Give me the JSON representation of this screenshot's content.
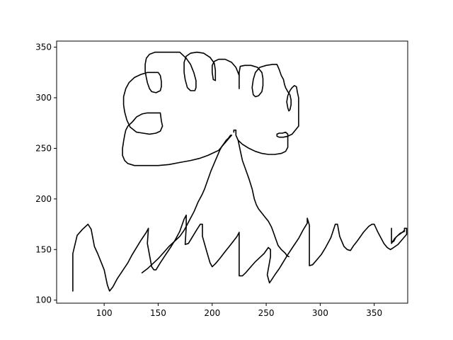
{
  "chart_data": {
    "type": "line",
    "title": "",
    "xlabel": "",
    "ylabel": "",
    "xlim": [
      56,
      381
    ],
    "ylim": [
      97,
      356
    ],
    "xticks": [
      100,
      150,
      200,
      250,
      300,
      350
    ],
    "yticks": [
      100,
      150,
      200,
      250,
      300,
      350
    ],
    "grid": false,
    "legend": "none",
    "line_color": "#000000",
    "series": [
      {
        "points": [
          [
            71,
            109
          ],
          [
            71,
            146
          ],
          [
            75,
            164
          ],
          [
            80,
            170
          ],
          [
            85,
            175
          ],
          [
            88,
            170
          ],
          [
            91,
            153
          ],
          [
            94,
            146
          ],
          [
            97,
            138
          ],
          [
            100,
            130
          ],
          [
            103,
            115
          ],
          [
            105,
            109
          ],
          [
            108,
            113
          ],
          [
            112,
            121
          ],
          [
            117,
            129
          ],
          [
            122,
            137
          ],
          [
            126,
            145
          ],
          [
            130,
            152
          ],
          [
            134,
            159
          ],
          [
            139,
            167
          ],
          [
            141,
            171
          ],
          [
            140,
            156
          ],
          [
            144,
            133
          ],
          [
            146,
            130
          ],
          [
            148,
            130
          ],
          [
            152,
            137
          ],
          [
            157,
            145
          ],
          [
            162,
            153
          ],
          [
            166,
            160
          ],
          [
            170,
            168
          ],
          [
            174,
            180
          ],
          [
            176,
            184
          ],
          [
            176,
            172
          ],
          [
            175,
            155
          ],
          [
            178,
            156
          ],
          [
            182,
            163
          ],
          [
            186,
            170
          ],
          [
            189,
            175
          ],
          [
            191,
            175
          ],
          [
            191,
            163
          ],
          [
            195,
            148
          ],
          [
            198,
            137
          ],
          [
            200,
            133
          ],
          [
            203,
            136
          ],
          [
            207,
            141
          ],
          [
            212,
            148
          ],
          [
            218,
            156
          ],
          [
            223,
            163
          ],
          [
            225,
            167
          ],
          [
            225,
            124
          ],
          [
            228,
            124
          ],
          [
            231,
            127
          ],
          [
            235,
            132
          ],
          [
            240,
            138
          ],
          [
            245,
            143
          ],
          [
            248,
            146
          ],
          [
            252,
            152
          ],
          [
            254,
            150
          ],
          [
            254,
            143
          ],
          [
            251,
            125
          ],
          [
            253,
            117
          ],
          [
            255,
            120
          ],
          [
            258,
            125
          ],
          [
            262,
            131
          ],
          [
            266,
            138
          ],
          [
            270,
            145
          ],
          [
            275,
            153
          ],
          [
            280,
            161
          ],
          [
            284,
            169
          ],
          [
            288,
            176
          ],
          [
            288,
            181
          ],
          [
            290,
            174
          ],
          [
            290,
            134
          ],
          [
            293,
            135
          ],
          [
            297,
            140
          ],
          [
            301,
            145
          ],
          [
            305,
            152
          ],
          [
            308,
            158
          ],
          [
            310,
            162
          ],
          [
            314,
            175
          ],
          [
            316,
            175
          ],
          [
            318,
            163
          ],
          [
            322,
            153
          ],
          [
            325,
            150
          ],
          [
            328,
            149
          ],
          [
            331,
            154
          ],
          [
            334,
            158
          ],
          [
            338,
            164
          ],
          [
            340,
            167
          ],
          [
            345,
            173
          ],
          [
            348,
            175
          ],
          [
            350,
            175
          ],
          [
            353,
            168
          ],
          [
            356,
            162
          ],
          [
            359,
            156
          ],
          [
            362,
            152
          ],
          [
            365,
            150
          ],
          [
            368,
            152
          ],
          [
            372,
            155
          ],
          [
            376,
            160
          ],
          [
            380,
            165
          ],
          [
            380,
            171
          ],
          [
            378,
            171
          ],
          [
            378,
            168
          ],
          [
            374,
            166
          ],
          [
            370,
            162
          ],
          [
            368,
            158
          ],
          [
            366,
            158
          ],
          [
            366,
            168
          ],
          [
            366,
            171
          ],
          [
            366,
            156
          ],
          [
            369,
            161
          ],
          [
            372,
            164
          ],
          [
            376,
            167
          ],
          [
            378,
            169
          ]
        ]
      },
      {
        "points": [
          [
            135,
            127
          ],
          [
            140,
            131
          ],
          [
            145,
            136
          ],
          [
            150,
            141
          ],
          [
            155,
            147
          ],
          [
            160,
            153
          ],
          [
            165,
            158
          ],
          [
            170,
            163
          ],
          [
            174,
            169
          ],
          [
            177,
            175
          ],
          [
            180,
            181
          ],
          [
            183,
            187
          ],
          [
            185,
            192
          ],
          [
            187,
            197
          ],
          [
            189,
            201
          ],
          [
            191,
            205
          ],
          [
            193,
            210
          ],
          [
            195,
            216
          ],
          [
            197,
            222
          ],
          [
            199,
            228
          ],
          [
            201,
            233
          ],
          [
            203,
            238
          ],
          [
            205,
            243
          ],
          [
            207,
            248
          ],
          [
            209,
            252
          ],
          [
            211,
            255
          ],
          [
            213,
            258
          ],
          [
            215,
            260
          ],
          [
            217,
            263
          ],
          [
            218,
            263
          ]
        ]
      },
      {
        "points": [
          [
            218,
            263
          ],
          [
            214,
            258
          ],
          [
            210,
            253
          ],
          [
            206,
            248
          ],
          [
            202,
            246
          ],
          [
            196,
            243
          ],
          [
            188,
            240
          ],
          [
            180,
            238
          ],
          [
            170,
            236
          ],
          [
            160,
            234
          ],
          [
            150,
            233
          ],
          [
            140,
            233
          ],
          [
            128,
            233
          ],
          [
            122,
            235
          ],
          [
            119,
            238
          ],
          [
            117,
            243
          ],
          [
            117,
            250
          ],
          [
            118,
            257
          ],
          [
            119,
            263
          ],
          [
            120,
            268
          ],
          [
            122,
            272
          ],
          [
            126,
            276
          ],
          [
            130,
            281
          ],
          [
            135,
            284
          ],
          [
            140,
            285
          ],
          [
            148,
            285
          ],
          [
            152,
            285
          ],
          [
            153,
            277
          ],
          [
            154,
            272
          ],
          [
            152,
            267
          ],
          [
            148,
            265
          ],
          [
            142,
            264
          ],
          [
            136,
            265
          ],
          [
            130,
            266
          ],
          [
            124,
            271
          ],
          [
            121,
            278
          ],
          [
            119,
            286
          ],
          [
            118,
            293
          ],
          [
            118,
            301
          ],
          [
            120,
            309
          ],
          [
            123,
            315
          ],
          [
            128,
            320
          ],
          [
            134,
            323
          ],
          [
            140,
            325
          ],
          [
            145,
            325
          ],
          [
            150,
            325
          ],
          [
            152,
            322
          ],
          [
            153,
            316
          ],
          [
            153,
            311
          ],
          [
            152,
            307
          ],
          [
            148,
            305
          ],
          [
            144,
            306
          ],
          [
            142,
            309
          ],
          [
            140,
            315
          ],
          [
            139,
            320
          ],
          [
            138,
            326
          ],
          [
            138,
            333
          ],
          [
            139,
            339
          ],
          [
            142,
            343
          ],
          [
            147,
            345
          ],
          [
            160,
            345
          ],
          [
            170,
            345
          ],
          [
            176,
            339
          ],
          [
            180,
            333
          ],
          [
            183,
            325
          ],
          [
            185,
            317
          ],
          [
            185,
            310
          ],
          [
            184,
            307
          ],
          [
            180,
            307
          ],
          [
            177,
            310
          ],
          [
            175,
            318
          ],
          [
            174,
            325
          ],
          [
            174,
            335
          ],
          [
            176,
            341
          ],
          [
            180,
            344
          ],
          [
            186,
            345
          ],
          [
            192,
            344
          ],
          [
            198,
            340
          ],
          [
            202,
            334
          ],
          [
            203,
            327
          ],
          [
            203,
            320
          ],
          [
            203,
            317
          ],
          [
            201,
            318
          ],
          [
            200,
            325
          ],
          [
            200,
            332
          ],
          [
            202,
            336
          ],
          [
            206,
            338
          ],
          [
            212,
            338
          ],
          [
            218,
            335
          ],
          [
            222,
            330
          ],
          [
            225,
            322
          ],
          [
            225,
            309
          ],
          [
            225,
            325
          ],
          [
            226,
            331
          ],
          [
            230,
            332
          ],
          [
            236,
            332
          ],
          [
            242,
            330
          ],
          [
            246,
            325
          ],
          [
            247,
            319
          ],
          [
            247,
            312
          ],
          [
            246,
            306
          ],
          [
            243,
            302
          ],
          [
            240,
            301
          ],
          [
            238,
            303
          ],
          [
            237,
            310
          ],
          [
            238,
            318
          ],
          [
            240,
            325
          ],
          [
            244,
            330
          ],
          [
            250,
            332
          ],
          [
            256,
            333
          ],
          [
            260,
            333
          ],
          [
            262,
            328
          ],
          [
            264,
            322
          ],
          [
            266,
            318
          ],
          [
            267,
            313
          ],
          [
            268,
            310
          ],
          [
            270,
            306
          ],
          [
            272,
            303
          ],
          [
            273,
            298
          ],
          [
            273,
            293
          ],
          [
            272,
            288
          ],
          [
            271,
            287
          ],
          [
            270,
            290
          ],
          [
            269,
            296
          ],
          [
            270,
            302
          ],
          [
            272,
            307
          ],
          [
            274,
            310
          ],
          [
            276,
            312
          ],
          [
            278,
            311
          ],
          [
            279,
            305
          ],
          [
            280,
            300
          ],
          [
            280,
            295
          ],
          [
            280,
            288
          ],
          [
            280,
            281
          ],
          [
            280,
            275
          ],
          [
            280,
            272
          ],
          [
            277,
            268
          ],
          [
            274,
            264
          ],
          [
            270,
            262
          ],
          [
            266,
            261
          ],
          [
            262,
            261
          ],
          [
            260,
            262
          ],
          [
            260,
            264
          ],
          [
            262,
            265
          ],
          [
            265,
            265
          ],
          [
            268,
            266
          ],
          [
            270,
            264
          ],
          [
            270,
            258
          ],
          [
            270,
            251
          ],
          [
            268,
            247
          ],
          [
            264,
            245
          ],
          [
            258,
            244
          ],
          [
            252,
            244
          ],
          [
            246,
            245
          ],
          [
            240,
            247
          ],
          [
            234,
            250
          ],
          [
            228,
            254
          ],
          [
            224,
            258
          ],
          [
            222,
            263
          ],
          [
            222,
            268
          ],
          [
            220,
            268
          ],
          [
            220,
            266
          ]
        ]
      },
      {
        "points": [
          [
            224,
            258
          ],
          [
            226,
            248
          ],
          [
            228,
            238
          ],
          [
            231,
            229
          ],
          [
            234,
            220
          ],
          [
            237,
            210
          ],
          [
            239,
            200
          ],
          [
            241,
            194
          ],
          [
            243,
            190
          ],
          [
            246,
            186
          ],
          [
            249,
            182
          ],
          [
            252,
            178
          ],
          [
            255,
            172
          ],
          [
            257,
            166
          ],
          [
            259,
            160
          ],
          [
            261,
            154
          ],
          [
            264,
            150
          ],
          [
            266,
            148
          ],
          [
            268,
            146
          ],
          [
            269,
            144
          ],
          [
            271,
            143
          ]
        ]
      }
    ]
  }
}
